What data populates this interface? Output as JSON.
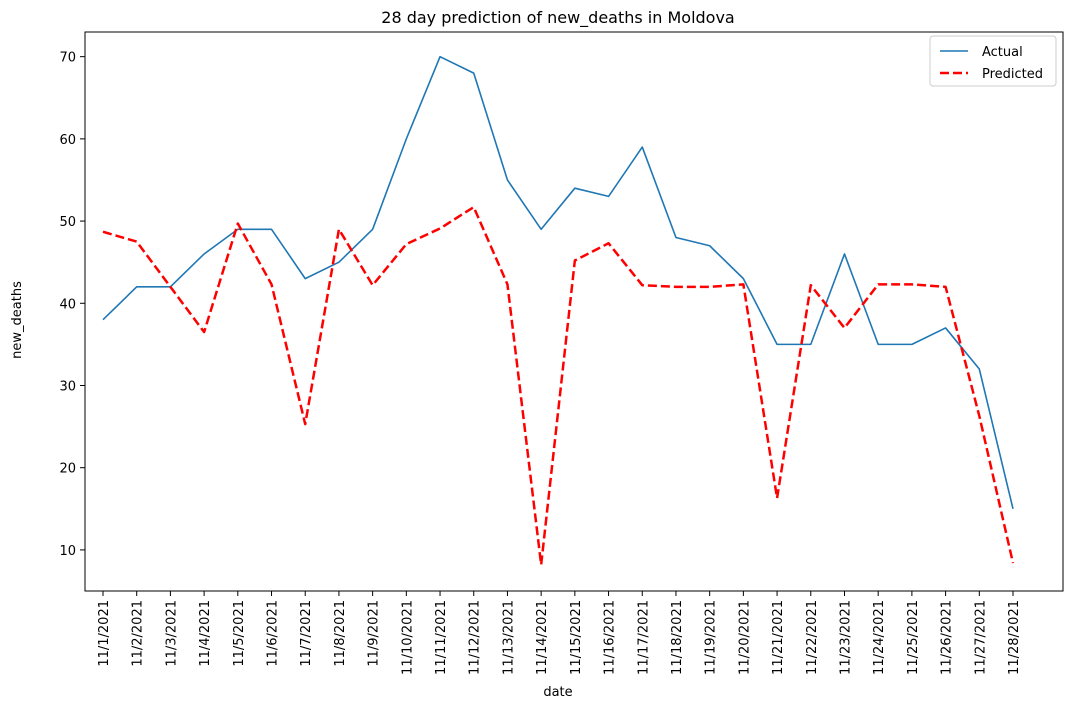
{
  "chart_data": {
    "type": "line",
    "title": "28 day prediction of new_deaths in Moldova",
    "xlabel": "date",
    "ylabel": "new_deaths",
    "ylim": [
      5,
      73
    ],
    "yticks": [
      10,
      20,
      30,
      40,
      50,
      60,
      70
    ],
    "grid": false,
    "legend_position": "top-right",
    "categories": [
      "11/1/2021",
      "11/2/2021",
      "11/3/2021",
      "11/4/2021",
      "11/5/2021",
      "11/6/2021",
      "11/7/2021",
      "11/8/2021",
      "11/9/2021",
      "11/10/2021",
      "11/11/2021",
      "11/12/2021",
      "11/13/2021",
      "11/14/2021",
      "11/15/2021",
      "11/16/2021",
      "11/17/2021",
      "11/18/2021",
      "11/19/2021",
      "11/20/2021",
      "11/21/2021",
      "11/22/2021",
      "11/23/2021",
      "11/24/2021",
      "11/25/2021",
      "11/26/2021",
      "11/27/2021",
      "11/28/2021"
    ],
    "series": [
      {
        "name": "Actual",
        "color": "#1f77b4",
        "style": "solid",
        "values": [
          38,
          42,
          42,
          46,
          49,
          49,
          43,
          45,
          49,
          60,
          70,
          68,
          55,
          49,
          54,
          53,
          59,
          48,
          47,
          43,
          35,
          35,
          46,
          35,
          35,
          37,
          32,
          15
        ]
      },
      {
        "name": "Predicted",
        "color": "#ff0000",
        "style": "dashed",
        "values": [
          48.7,
          47.5,
          42,
          36.5,
          49.7,
          42.3,
          25.3,
          49,
          42.2,
          47.2,
          49.1,
          51.7,
          42.3,
          8.2,
          45.2,
          47.3,
          42.2,
          42,
          42,
          42.3,
          16.3,
          42.2,
          37,
          42.3,
          42.3,
          42,
          26.3,
          8.4
        ]
      }
    ]
  }
}
